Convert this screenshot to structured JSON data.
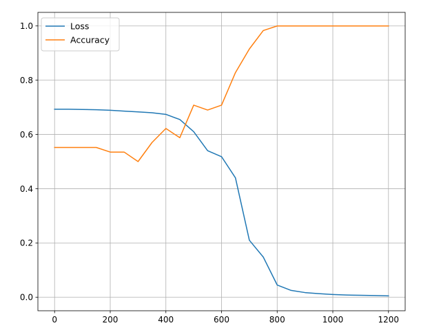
{
  "chart_data": {
    "type": "line",
    "title": "",
    "xlabel": "",
    "ylabel": "",
    "xlim": [
      -60,
      1260
    ],
    "ylim": [
      -0.05,
      1.05
    ],
    "xticks": [
      0,
      200,
      400,
      600,
      800,
      1000,
      1200
    ],
    "yticks": [
      0.0,
      0.2,
      0.4,
      0.6,
      0.8,
      1.0
    ],
    "xtick_labels": [
      "0",
      "200",
      "400",
      "600",
      "800",
      "1000",
      "1200"
    ],
    "ytick_labels": [
      "0.0",
      "0.2",
      "0.4",
      "0.6",
      "0.8",
      "1.0"
    ],
    "grid": true,
    "legend_position": "top-left",
    "x": [
      0,
      50,
      100,
      150,
      200,
      250,
      300,
      350,
      400,
      450,
      500,
      550,
      600,
      650,
      700,
      750,
      800,
      850,
      900,
      950,
      1000,
      1050,
      1100,
      1150,
      1200
    ],
    "series": [
      {
        "name": "Loss",
        "color": "#1f77b4",
        "values": [
          0.693,
          0.693,
          0.692,
          0.691,
          0.689,
          0.686,
          0.683,
          0.68,
          0.674,
          0.655,
          0.61,
          0.54,
          0.518,
          0.44,
          0.21,
          0.148,
          0.045,
          0.025,
          0.017,
          0.013,
          0.01,
          0.008,
          0.007,
          0.006,
          0.005
        ]
      },
      {
        "name": "Accuracy",
        "color": "#ff7f0e",
        "values": [
          0.552,
          0.552,
          0.552,
          0.552,
          0.535,
          0.535,
          0.5,
          0.57,
          0.622,
          0.588,
          0.708,
          0.69,
          0.708,
          0.828,
          0.915,
          0.983,
          1.0,
          1.0,
          1.0,
          1.0,
          1.0,
          1.0,
          1.0,
          1.0,
          1.0
        ]
      }
    ]
  }
}
